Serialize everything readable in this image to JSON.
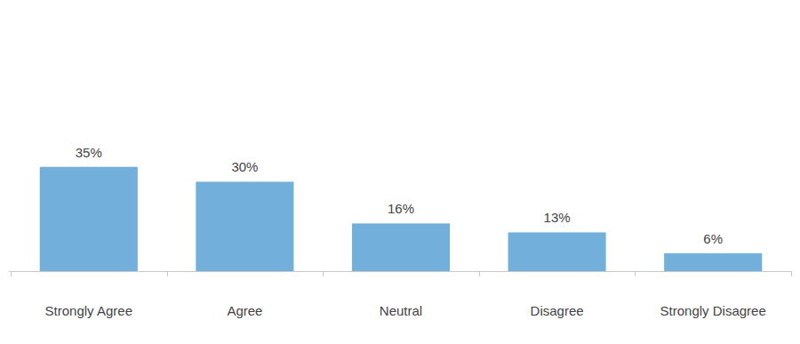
{
  "chart_data": {
    "type": "bar",
    "categories": [
      "Strongly Agree",
      "Agree",
      "Neutral",
      "Disagree",
      "Strongly Disagree"
    ],
    "values": [
      35,
      30,
      16,
      13,
      6
    ],
    "value_labels": [
      "35%",
      "30%",
      "16%",
      "13%",
      "6%"
    ],
    "color": "#72b0db",
    "ylim": [
      0,
      91
    ],
    "grid": false,
    "data_labels": true,
    "tick_labels": "x"
  }
}
